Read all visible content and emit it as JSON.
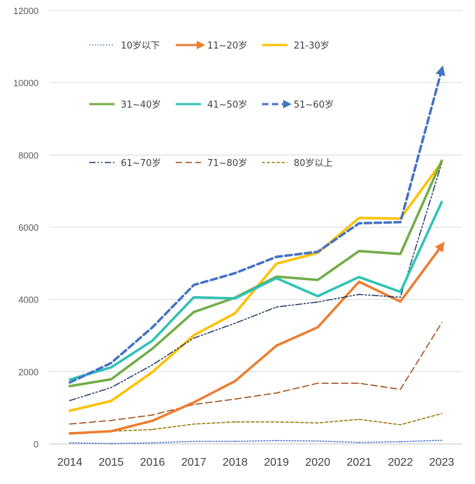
{
  "chart_data": {
    "type": "line",
    "title": "",
    "xlabel": "",
    "ylabel": "",
    "ylim": [
      0,
      12000
    ],
    "yticks": [
      0,
      2000,
      4000,
      6000,
      8000,
      10000,
      12000
    ],
    "grid": true,
    "categories": [
      "2014",
      "2015",
      "2016",
      "2017",
      "2018",
      "2019",
      "2020",
      "2021",
      "2022",
      "2023"
    ],
    "series": [
      {
        "name": "10岁以下",
        "color": "#4472C4",
        "values": [
          30,
          10,
          30,
          70,
          70,
          90,
          80,
          40,
          60,
          100
        ]
      },
      {
        "name": "11~20岁",
        "color": "#ED7D31",
        "values": [
          290,
          350,
          640,
          1150,
          1740,
          2720,
          3230,
          4490,
          3940,
          5490
        ]
      },
      {
        "name": "21-30岁",
        "color": "#FFC000",
        "values": [
          920,
          1190,
          1990,
          3010,
          3620,
          4990,
          5290,
          6260,
          6240,
          7800
        ]
      },
      {
        "name": "31~40岁",
        "color": "#70AD47",
        "values": [
          1600,
          1790,
          2640,
          3650,
          4050,
          4630,
          4540,
          5340,
          5260,
          7840
        ]
      },
      {
        "name": "41~50岁",
        "color": "#2EC2B6",
        "values": [
          1780,
          2120,
          2860,
          4060,
          4030,
          4590,
          4090,
          4620,
          4210,
          6700
        ]
      },
      {
        "name": "51~60岁",
        "color": "#4472C4",
        "values": [
          1700,
          2240,
          3230,
          4400,
          4730,
          5180,
          5320,
          6110,
          6140,
          10350
        ]
      },
      {
        "name": "61~70岁",
        "color": "#203864",
        "values": [
          1200,
          1560,
          2190,
          2930,
          3340,
          3790,
          3930,
          4140,
          4060,
          7770
        ]
      },
      {
        "name": "71~80岁",
        "color": "#9E480E",
        "values": [
          550,
          650,
          800,
          1090,
          1240,
          1410,
          1680,
          1680,
          1510,
          3350
        ]
      },
      {
        "name": "80岁以上",
        "color": "#997300",
        "values": [
          310,
          350,
          400,
          550,
          610,
          610,
          580,
          680,
          530,
          840
        ]
      }
    ]
  }
}
